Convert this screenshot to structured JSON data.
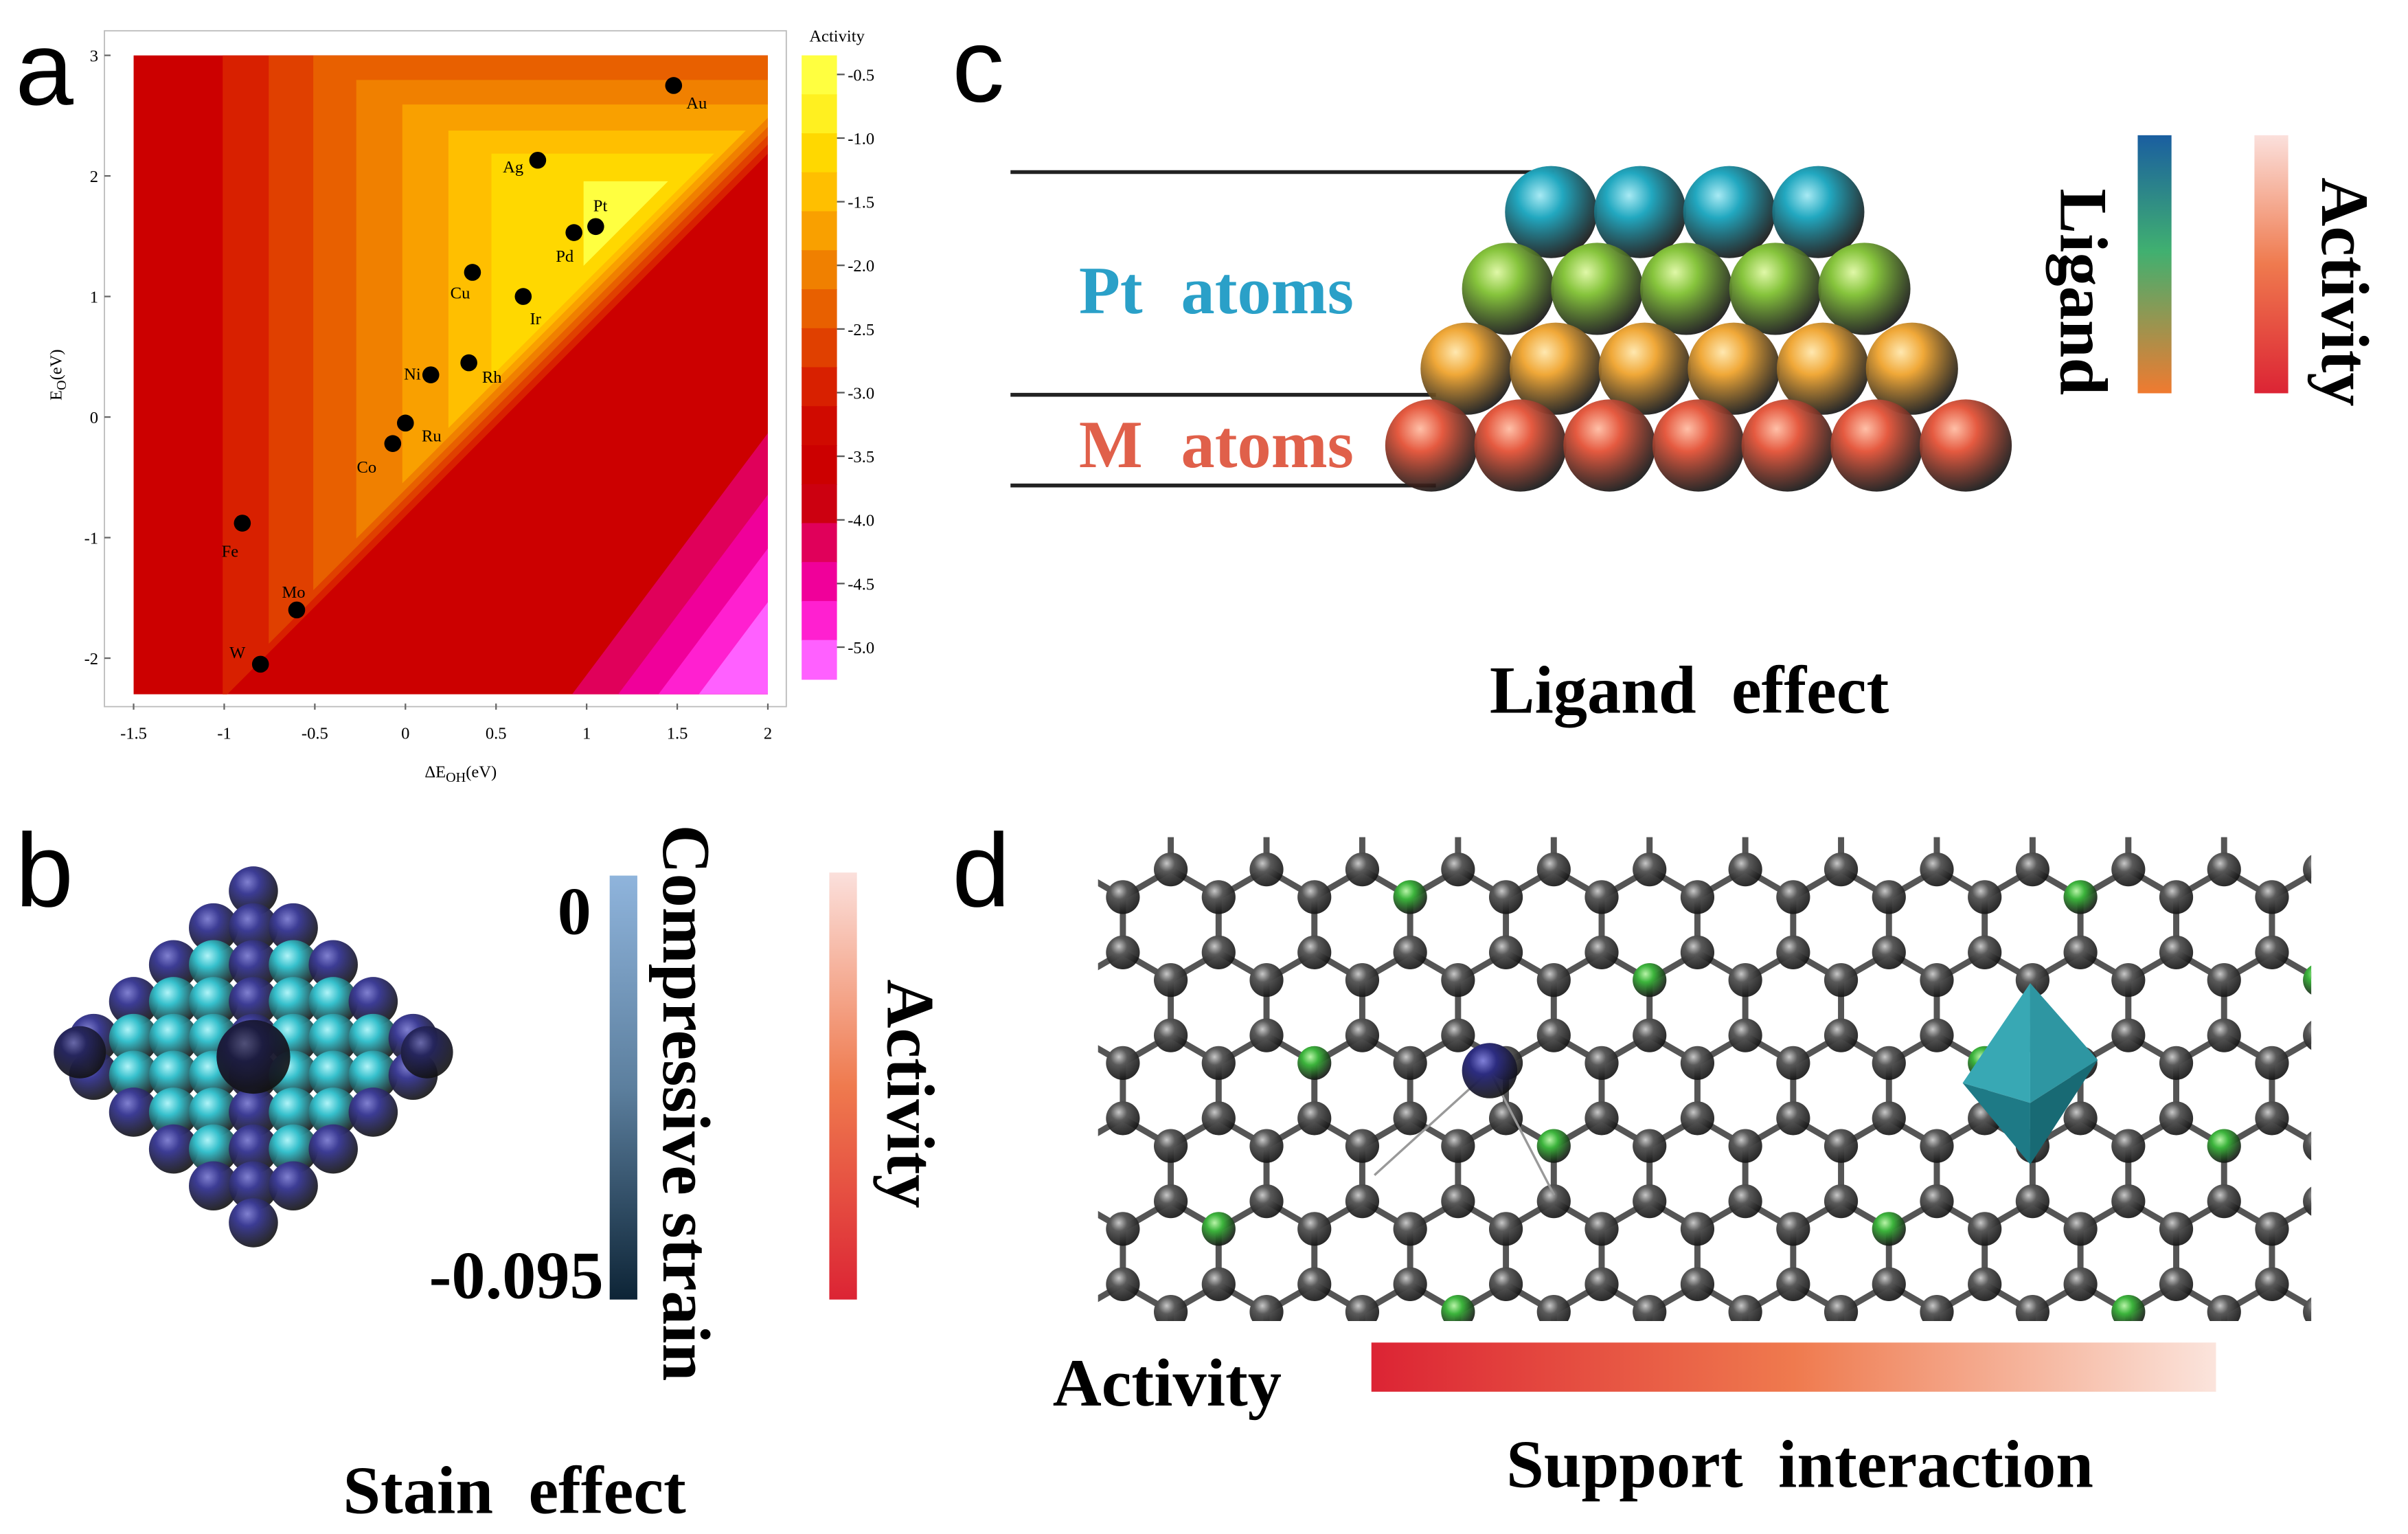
{
  "panel_labels": [
    "a",
    "b",
    "c",
    "d"
  ],
  "chart_data": {
    "type": "scatter",
    "x_label": {
      "text": "ΔE",
      "sub": "OH",
      "unit": "(eV)"
    },
    "y_label": {
      "text": "E",
      "sub": "O",
      "unit": "(eV)"
    },
    "point_labels": [
      "Au",
      "Ag",
      "Pt",
      "Pd",
      "Cu",
      "Ir",
      "Ni",
      "Rh",
      "Ru",
      "Co",
      "Fe",
      "Mo",
      "W"
    ],
    "x": [
      1.48,
      0.73,
      1.05,
      0.93,
      0.37,
      0.65,
      0.14,
      0.35,
      0.0,
      -0.07,
      -0.9,
      -0.6,
      -0.8
    ],
    "values": [
      2.75,
      2.13,
      1.58,
      1.53,
      1.2,
      1.0,
      0.35,
      0.45,
      -0.05,
      -0.22,
      -0.88,
      -1.6,
      -2.05
    ],
    "xlim": [
      -1.5,
      2
    ],
    "ylim": [
      -2.3,
      3
    ],
    "xticks": [
      -1.5,
      -1,
      -0.5,
      0,
      0.5,
      1,
      1.5,
      2
    ],
    "yticks": [
      -2,
      -1,
      0,
      1,
      2,
      3
    ],
    "marker_color": "#000000",
    "colorbar": {
      "title": "Activity",
      "lim": [
        -5.25,
        -0.35
      ],
      "ticks": [
        -0.5,
        {
          "value": -1,
          "label": "-1.0"
        },
        -1.5,
        {
          "value": -2,
          "label": "-2.0"
        },
        -2.5,
        {
          "value": -3,
          "label": "-3.0"
        },
        -3.5,
        {
          "value": -4,
          "label": "-4.0"
        },
        -4.5,
        {
          "value": -5,
          "label": "-5.0"
        }
      ],
      "colors": [
        "#ffff40",
        "#fff020",
        "#ffd800",
        "#ffbf00",
        "#f9a000",
        "#f08000",
        "#e86000",
        "#e04000",
        "#d82000",
        "#d00a00",
        "#cc0000",
        "#cc0010",
        "#e0005a",
        "#f0009a",
        "#ff20d0",
        "#ff60ff"
      ]
    }
  },
  "panel_b": {
    "colorbar_title": "Compressive strain",
    "colorbar_top": "0",
    "colorbar_bottom": "-0.095",
    "activity": "Activity",
    "caption": "Stain effect"
  },
  "panel_c": {
    "pt_label": "Pt atoms",
    "m_label": "M atoms",
    "ligand": "Ligand",
    "activity": "Activity",
    "caption": "Ligand effect"
  },
  "panel_d": {
    "activity": "Activity",
    "caption": "Support interaction"
  }
}
